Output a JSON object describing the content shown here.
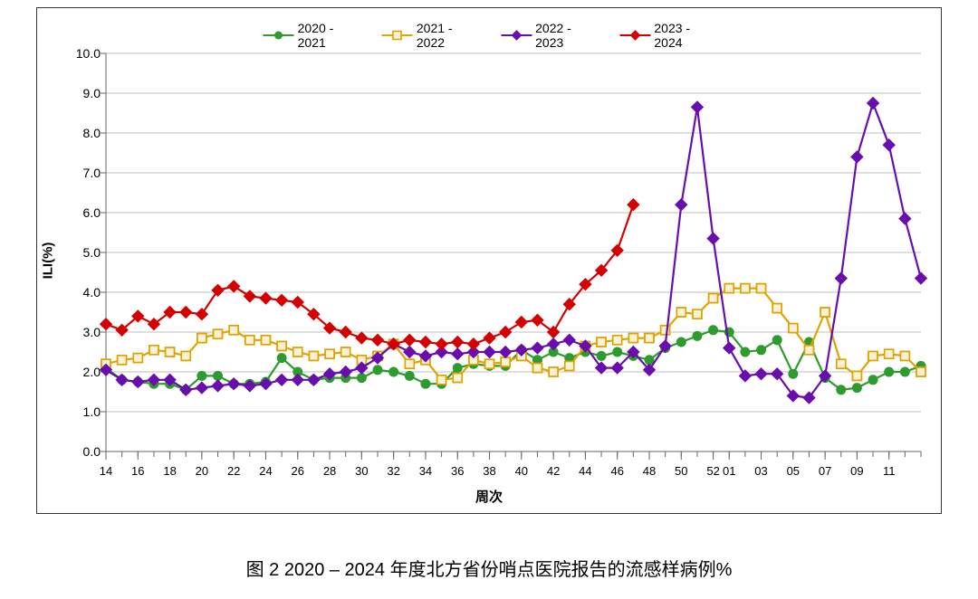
{
  "caption": "图 2   2020 – 2024 年度北方省份哨点医院报告的流感样病例%",
  "chart": {
    "type": "line",
    "background_color": "#ffffff",
    "border_color": "#333333",
    "ylabel": "ILI(%)",
    "xlabel": "周次",
    "label_fontsize": 15,
    "tick_fontsize": 14,
    "ylim": [
      0.0,
      10.0
    ],
    "ytick_step": 1.0,
    "ytick_labels": [
      "0.0",
      "1.0",
      "2.0",
      "3.0",
      "4.0",
      "5.0",
      "6.0",
      "7.0",
      "8.0",
      "9.0",
      "10.0"
    ],
    "x_categories": [
      "14",
      "15",
      "16",
      "17",
      "18",
      "19",
      "20",
      "21",
      "22",
      "23",
      "24",
      "25",
      "26",
      "27",
      "28",
      "29",
      "30",
      "31",
      "32",
      "33",
      "34",
      "35",
      "36",
      "37",
      "38",
      "39",
      "40",
      "41",
      "42",
      "43",
      "44",
      "45",
      "46",
      "47",
      "48",
      "49",
      "50",
      "51",
      "52",
      "01",
      "02",
      "03",
      "04",
      "05",
      "06",
      "07",
      "08",
      "09",
      "10",
      "11",
      "12",
      "13"
    ],
    "x_tick_show": [
      "14",
      "16",
      "18",
      "20",
      "22",
      "24",
      "26",
      "28",
      "30",
      "32",
      "34",
      "36",
      "38",
      "40",
      "42",
      "44",
      "46",
      "48",
      "50",
      "52",
      "01",
      "03",
      "05",
      "07",
      "09",
      "11"
    ],
    "grid_color": "#bfbfbf",
    "tick_color": "#666666",
    "line_width": 2.2,
    "marker_size": 5,
    "legend": {
      "items": [
        {
          "label": "2020 - 2021",
          "color": "#2e9b2e",
          "marker": "circle"
        },
        {
          "label": "2021 - 2022",
          "color": "#e0a400",
          "marker": "square"
        },
        {
          "label": "2022 - 2023",
          "color": "#6a0dad",
          "marker": "diamond"
        },
        {
          "label": "2023 - 2024",
          "color": "#d40000",
          "marker": "diamond"
        }
      ]
    },
    "series": [
      {
        "name": "2020 - 2021",
        "color": "#2e9b2e",
        "marker": "circle",
        "values": [
          2.1,
          1.8,
          1.75,
          1.7,
          1.7,
          1.55,
          1.9,
          1.9,
          1.7,
          1.7,
          1.75,
          2.35,
          2.0,
          1.8,
          1.85,
          1.85,
          1.85,
          2.05,
          2.0,
          1.9,
          1.7,
          1.7,
          2.1,
          2.2,
          2.15,
          2.15,
          2.55,
          2.3,
          2.5,
          2.35,
          2.5,
          2.4,
          2.5,
          2.4,
          2.3,
          2.6,
          2.75,
          2.9,
          3.05,
          3.0,
          2.5,
          2.55,
          2.8,
          1.95,
          2.75,
          1.85,
          1.55,
          1.6,
          1.8,
          2.0,
          2.0,
          2.15
        ]
      },
      {
        "name": "2021 - 2022",
        "color": "#e0a400",
        "marker": "square",
        "values": [
          2.2,
          2.3,
          2.35,
          2.55,
          2.5,
          2.4,
          2.85,
          2.95,
          3.05,
          2.8,
          2.8,
          2.65,
          2.5,
          2.4,
          2.45,
          2.5,
          2.3,
          2.4,
          2.7,
          2.2,
          2.3,
          1.8,
          1.85,
          2.3,
          2.2,
          2.25,
          2.4,
          2.1,
          2.0,
          2.15,
          2.65,
          2.75,
          2.8,
          2.85,
          2.85,
          3.05,
          3.5,
          3.45,
          3.85,
          4.1,
          4.1,
          4.1,
          3.6,
          3.1,
          2.55,
          3.5,
          2.2,
          1.9,
          2.4,
          2.45,
          2.4,
          2.0
        ]
      },
      {
        "name": "2022 - 2023",
        "color": "#6a0dad",
        "marker": "diamond",
        "values": [
          2.05,
          1.8,
          1.75,
          1.8,
          1.8,
          1.55,
          1.6,
          1.65,
          1.7,
          1.65,
          1.7,
          1.8,
          1.8,
          1.8,
          1.95,
          2.0,
          2.1,
          2.35,
          2.7,
          2.5,
          2.4,
          2.5,
          2.45,
          2.5,
          2.5,
          2.5,
          2.55,
          2.6,
          2.7,
          2.8,
          2.65,
          2.1,
          2.1,
          2.5,
          2.05,
          2.65,
          6.2,
          8.65,
          5.35,
          2.6,
          1.9,
          1.95,
          1.95,
          1.4,
          1.35,
          1.9,
          4.35,
          7.4,
          8.75,
          7.7,
          5.85,
          4.35
        ]
      },
      {
        "name": "2023 - 2024",
        "color": "#d40000",
        "marker": "diamond",
        "values": [
          3.2,
          3.05,
          3.4,
          3.2,
          3.5,
          3.5,
          3.45,
          4.05,
          4.15,
          3.9,
          3.85,
          3.8,
          3.75,
          3.45,
          3.1,
          3.0,
          2.85,
          2.8,
          2.7,
          2.8,
          2.75,
          2.7,
          2.75,
          2.7,
          2.85,
          3.0,
          3.25,
          3.3,
          3.0,
          3.7,
          4.2,
          4.55,
          5.05,
          6.2
        ]
      }
    ]
  }
}
